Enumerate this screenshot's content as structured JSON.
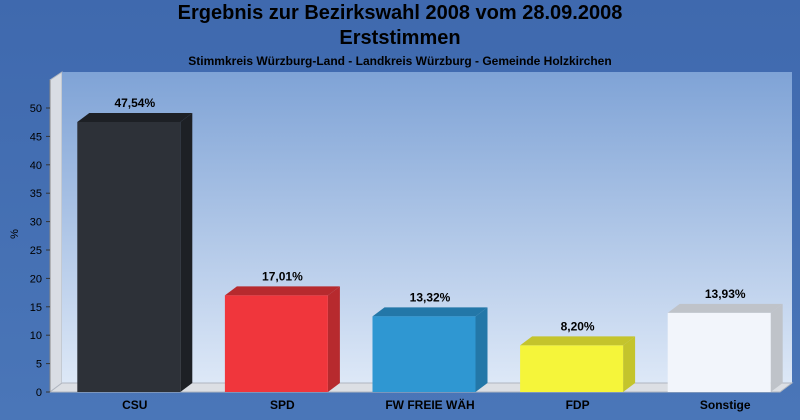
{
  "header": {
    "title_line1": "Ergebnis zur Bezirkswahl 2008 vom 28.09.2008",
    "title_line2": "Erststimmen",
    "subtitle": "Stimmkreis Würzburg-Land - Landkreis Würzburg - Gemeinde Holzkirchen"
  },
  "chart_data": {
    "type": "bar",
    "title": "Ergebnis zur Bezirkswahl 2008 vom 28.09.2008",
    "subtitle": "Erststimmen",
    "ylabel": "%",
    "xlabel": "",
    "ylim": [
      0,
      50
    ],
    "yticks": [
      0,
      5,
      10,
      15,
      20,
      25,
      30,
      35,
      40,
      45,
      50
    ],
    "grid": false,
    "categories": [
      "CSU",
      "SPD",
      "FW FREIE WÄH",
      "FDP",
      "Sonstige"
    ],
    "values": [
      47.54,
      17.01,
      13.32,
      8.2,
      13.93
    ],
    "value_labels": [
      "47,54%",
      "17,01%",
      "13,32%",
      "8,20%",
      "13,93%"
    ],
    "colors": [
      "#2d3138",
      "#f0363c",
      "#2f97d2",
      "#f5f53a",
      "#f2f5fb"
    ],
    "side_colors": [
      "#1d2025",
      "#b72a2e",
      "#2377a8",
      "#c4c42c",
      "#bfc3c9"
    ]
  }
}
